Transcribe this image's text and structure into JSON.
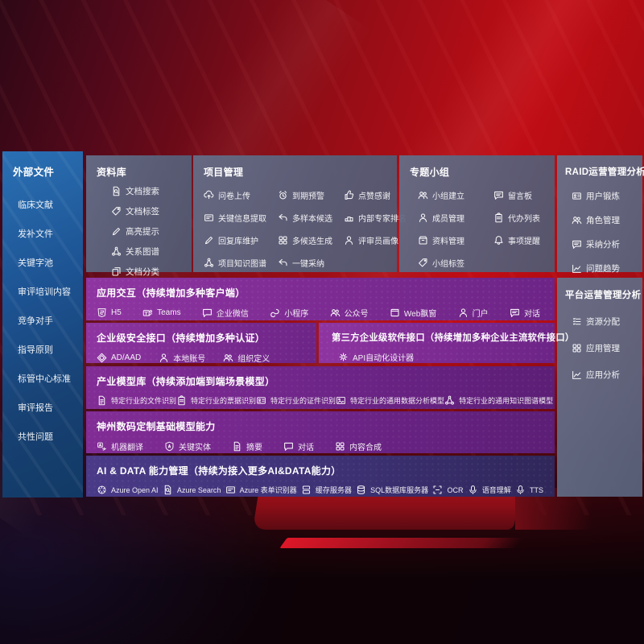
{
  "colors": {
    "background_red": "#c10d15",
    "sidebar_blue": "#1d5494",
    "panel_gray": "#5c657e",
    "panel_purple": "#7e2c94",
    "panel_indigo": "#3d3174",
    "text": "#ffffff"
  },
  "sidebar": {
    "title": "外部文件",
    "items": [
      "临床文献",
      "发补文件",
      "关键字池",
      "审评培训内容",
      "竞争对手",
      "指导原则",
      "标管中心标准",
      "审评报告",
      "共性问题"
    ]
  },
  "panels": {
    "repo": {
      "title": "资料库",
      "items": [
        {
          "label": "文档搜索",
          "icon": "doc-search"
        },
        {
          "label": "文档标签",
          "icon": "tag"
        },
        {
          "label": "高亮提示",
          "icon": "pen"
        },
        {
          "label": "关系图谱",
          "icon": "network"
        },
        {
          "label": "文档分类",
          "icon": "copy"
        }
      ]
    },
    "project": {
      "title": "项目管理",
      "items": [
        {
          "label": "问卷上传",
          "icon": "cloud-up"
        },
        {
          "label": "到期预警",
          "icon": "alarm"
        },
        {
          "label": "点赞感谢",
          "icon": "thumb"
        },
        {
          "label": "关键信息提取",
          "icon": "card"
        },
        {
          "label": "多样本候选",
          "icon": "reply"
        },
        {
          "label": "内部专家排名",
          "icon": "podium"
        },
        {
          "label": "回复库维护",
          "icon": "pen"
        },
        {
          "label": "多候选生成",
          "icon": "grid4"
        },
        {
          "label": "评审员画像",
          "icon": "person"
        },
        {
          "label": "项目知识图谱",
          "icon": "network"
        },
        {
          "label": "一键采纳",
          "icon": "reply"
        }
      ]
    },
    "group": {
      "title": "专题小组",
      "items": [
        {
          "label": "小组建立",
          "icon": "people"
        },
        {
          "label": "留言板",
          "icon": "chat-lines"
        },
        {
          "label": "成员管理",
          "icon": "person"
        },
        {
          "label": "代办列表",
          "icon": "clipboard"
        },
        {
          "label": "资料管理",
          "icon": "box"
        },
        {
          "label": "事项提醒",
          "icon": "bell"
        },
        {
          "label": "小组标签",
          "icon": "tag"
        }
      ]
    },
    "raid": {
      "title": "RAID运营管理分析",
      "items": [
        {
          "label": "用户锻炼",
          "icon": "idcard"
        },
        {
          "label": "角色管理",
          "icon": "people"
        },
        {
          "label": "采纳分析",
          "icon": "chat-lines"
        },
        {
          "label": "问题趋势",
          "icon": "chart-up"
        }
      ]
    },
    "platform": {
      "title": "平台运营管理分析",
      "items": [
        {
          "label": "资源分配",
          "icon": "list"
        },
        {
          "label": "应用管理",
          "icon": "grid4"
        },
        {
          "label": "应用分析",
          "icon": "chart-up"
        }
      ]
    },
    "interact": {
      "title": "应用交互（持续增加多种客户端）",
      "items": [
        {
          "label": "H5",
          "icon": "h5"
        },
        {
          "label": "Teams",
          "icon": "teams"
        },
        {
          "label": "企业微信",
          "icon": "chat"
        },
        {
          "label": "小程序",
          "icon": "mini"
        },
        {
          "label": "公众号",
          "icon": "people"
        },
        {
          "label": "Web飘窗",
          "icon": "window"
        },
        {
          "label": "门户",
          "icon": "person"
        },
        {
          "label": "对话",
          "icon": "chat-lines"
        }
      ]
    },
    "security": {
      "title": "企业级安全接口（持续增加多种认证）",
      "items": [
        {
          "label": "AD/AAD",
          "icon": "diamond"
        },
        {
          "label": "本地账号",
          "icon": "person"
        },
        {
          "label": "组织定义",
          "icon": "people"
        }
      ]
    },
    "third": {
      "title": "第三方企业级软件接口（持续增加多种企业主流软件接口）",
      "items": [
        {
          "label": "API自动化设计器",
          "icon": "gear"
        }
      ]
    },
    "models": {
      "title": "产业模型库（持续添加端到端场景模型）",
      "items": [
        {
          "label": "特定行业的文件识别",
          "icon": "doc"
        },
        {
          "label": "特定行业的票据识别",
          "icon": "clipboard"
        },
        {
          "label": "特定行业的证件识别",
          "icon": "idcard"
        },
        {
          "label": "特定行业的通用数据分析模型",
          "icon": "image"
        },
        {
          "label": "特定行业的通用知识图谱模型",
          "icon": "network"
        }
      ]
    },
    "base": {
      "title": "神州数码定制基础模型能力",
      "items": [
        {
          "label": "机器翻译",
          "icon": "translate"
        },
        {
          "label": "关键实体",
          "icon": "shield"
        },
        {
          "label": "摘要",
          "icon": "doc"
        },
        {
          "label": "对话",
          "icon": "chat"
        },
        {
          "label": "内容合成",
          "icon": "grid4"
        }
      ]
    },
    "aidata": {
      "title": "AI & DATA 能力管理（持续为接入更多AI&DATA能力）",
      "items": [
        {
          "label": "Azure Open AI",
          "icon": "openai"
        },
        {
          "label": "Azure Search",
          "icon": "doc-search"
        },
        {
          "label": "Azure 表单识别器",
          "icon": "card"
        },
        {
          "label": "缓存服务器",
          "icon": "server"
        },
        {
          "label": "SQL数据库服务器",
          "icon": "db"
        },
        {
          "label": "OCR",
          "icon": "brackets"
        },
        {
          "label": "语音理解",
          "icon": "voice"
        },
        {
          "label": "TTS",
          "icon": "voice"
        }
      ]
    }
  }
}
